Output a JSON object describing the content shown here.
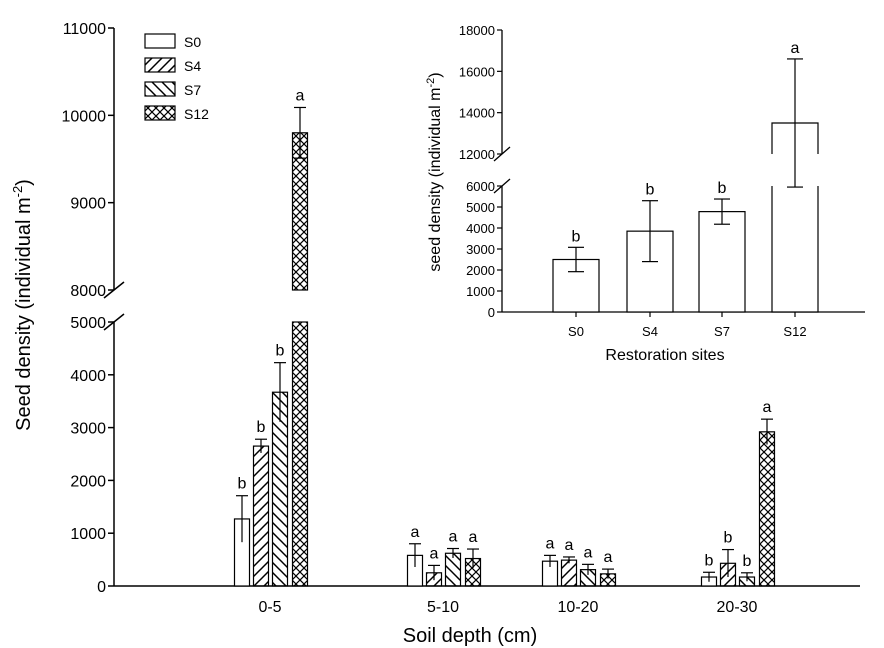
{
  "chart_data": [
    {
      "type": "bar",
      "xlabel": "Soil depth (cm)",
      "ylabel": "Seed density (individual m",
      "ylabel_sup": "-2",
      "ylabel_close": ")",
      "categories": [
        "0-5",
        "5-10",
        "10-20",
        "20-30"
      ],
      "y_axis_break": [
        5000,
        8000
      ],
      "ylim": [
        0,
        11000
      ],
      "yticks_lower": [
        "0",
        "1000",
        "2000",
        "3000",
        "4000",
        "5000"
      ],
      "yticks_upper": [
        "8000",
        "9000",
        "10000",
        "11000"
      ],
      "legend_position": "top-left",
      "series": [
        {
          "name": "S0",
          "pattern": "open",
          "values": [
            1270,
            580,
            470,
            170
          ],
          "errors": [
            440,
            220,
            110,
            90
          ],
          "letters": [
            "b",
            "a",
            "a",
            "b"
          ]
        },
        {
          "name": "S4",
          "pattern": "diagonal-forward",
          "values": [
            2650,
            250,
            490,
            430
          ],
          "errors": [
            130,
            140,
            60,
            260
          ],
          "letters": [
            "b",
            "a",
            "a",
            "b"
          ]
        },
        {
          "name": "S7",
          "pattern": "diagonal-backward",
          "values": [
            3670,
            620,
            310,
            170
          ],
          "errors": [
            560,
            90,
            100,
            80
          ],
          "letters": [
            "b",
            "a",
            "a",
            "b"
          ]
        },
        {
          "name": "S12",
          "pattern": "crosshatch",
          "values": [
            9800,
            520,
            230,
            2920
          ],
          "errors": [
            290,
            180,
            90,
            240
          ],
          "letters": [
            "a",
            "a",
            "a",
            "a"
          ]
        }
      ]
    },
    {
      "type": "bar",
      "xlabel": "Restoration sites",
      "ylabel": "seed density (individual m",
      "ylabel_sup": "-2",
      "ylabel_close": ")",
      "categories": [
        "S0",
        "S4",
        "S7",
        "S12"
      ],
      "values": [
        2500,
        3850,
        4780,
        13500
      ],
      "errors": [
        580,
        1450,
        600,
        3100
      ],
      "letters": [
        "b",
        "b",
        "b",
        "a"
      ],
      "y_axis_break": [
        6000,
        12000
      ],
      "ylim": [
        0,
        18000
      ],
      "yticks_lower": [
        "0",
        "1000",
        "2000",
        "3000",
        "4000",
        "5000",
        "6000"
      ],
      "yticks_upper": [
        "12000",
        "14000",
        "16000",
        "18000"
      ]
    }
  ]
}
